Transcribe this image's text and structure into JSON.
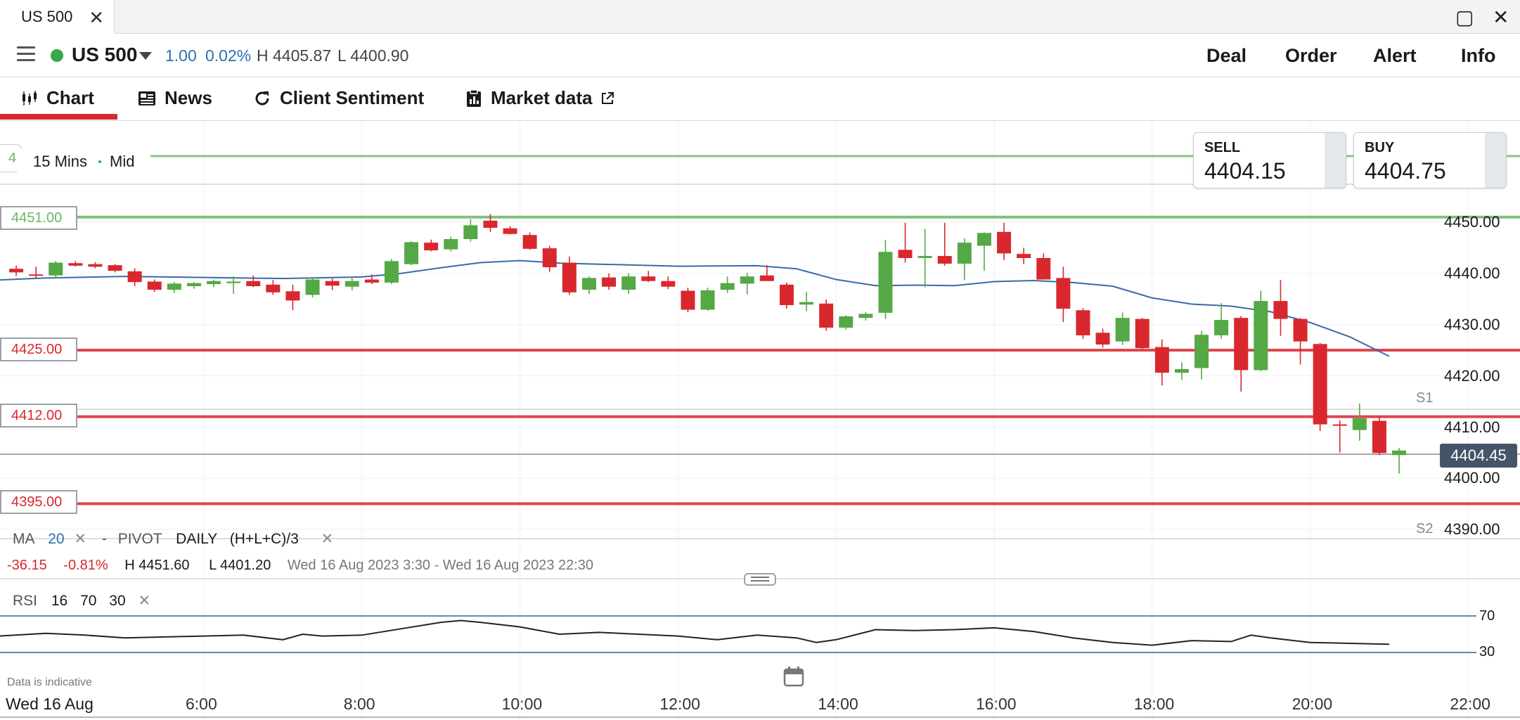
{
  "window": {
    "tab_title": "US 500",
    "close_glyph": "✕",
    "maximize_glyph": "▢",
    "exit_glyph": "✕"
  },
  "header": {
    "instrument": "US 500",
    "change": "1.00",
    "change_pct": "0.02%",
    "high": "H 4405.87",
    "low": "L 4400.90",
    "actions": [
      "Deal",
      "Order",
      "Alert",
      "Info"
    ],
    "status_color": "#39a845"
  },
  "subnav": {
    "tabs": [
      {
        "label": "Chart",
        "icon": "candlestick-chart-icon",
        "active": true
      },
      {
        "label": "News",
        "icon": "newspaper-icon"
      },
      {
        "label": "Client Sentiment",
        "icon": "refresh-icon"
      },
      {
        "label": "Market data",
        "icon": "clipboard-icon",
        "external": "external-link-icon"
      }
    ],
    "active_color": "#d8282e"
  },
  "chart": {
    "timeframe": "15 Mins",
    "price_type": "Mid",
    "top_level_label_fragment": "4",
    "sell_label": "SELL",
    "sell_price": "4404.15",
    "buy_label": "BUY",
    "buy_price": "4404.75",
    "current_price": "4404.45",
    "levels": [
      {
        "label": "4451.00",
        "value": 4451.0,
        "color": "#6cb663"
      },
      {
        "label": "4425.00",
        "value": 4425.0,
        "color": "#d8282e"
      },
      {
        "label": "4412.00",
        "value": 4412.0,
        "color": "#d8282e"
      },
      {
        "label": "4395.00",
        "value": 4395.0,
        "color": "#d8282e"
      }
    ],
    "pivots": [
      {
        "label": "S1",
        "value": 4413.2
      },
      {
        "label": "S2",
        "value": 4388.0
      }
    ],
    "indicators": {
      "ma_label": "MA",
      "ma_period": "20",
      "sep": "-",
      "pivot_label": "PIVOT",
      "pivot_period": "DAILY",
      "pivot_formula": "(H+L+C)/3",
      "remove_glyph": "✕"
    },
    "summary": {
      "change": "-36.15",
      "change_pct": "-0.81%",
      "high": "H 4451.60",
      "low": "L 4401.20",
      "range": "Wed 16 Aug 2023 3:30 - Wed 16 Aug 2023 22:30"
    },
    "rsi": {
      "label": "RSI",
      "period": "16",
      "upper": "70",
      "lower": "30",
      "remove_glyph": "✕"
    },
    "footer_note": "Data is indicative",
    "date_label": "Wed 16 Aug",
    "up_color": "#55a846",
    "down_color": "#d8282e",
    "ma_color": "#3a6aa8"
  },
  "chart_data": {
    "type": "candlestick",
    "title": "",
    "xlabel": "",
    "ylabel": "",
    "y_ticks": [
      "4450.00",
      "4440.00",
      "4430.00",
      "4420.00",
      "4410.00",
      "4400.00",
      "4390.00"
    ],
    "x_ticks": [
      "6:00",
      "8:00",
      "10:00",
      "12:00",
      "14:00",
      "16:00",
      "18:00",
      "20:00",
      "22:00"
    ],
    "ylim": [
      4386,
      4462
    ],
    "x_range_hours": [
      3.4,
      22.6
    ],
    "interval_minutes": 15,
    "candles": [
      {
        "t": "3:30",
        "o": 4440.9,
        "h": 4441.5,
        "l": 4439.5,
        "c": 4440.2
      },
      {
        "t": "3:45",
        "o": 4439.8,
        "h": 4441.3,
        "l": 4439.0,
        "c": 4439.6
      },
      {
        "t": "4:00",
        "o": 4439.6,
        "h": 4442.4,
        "l": 4439.0,
        "c": 4442.1
      },
      {
        "t": "4:15",
        "o": 4442.0,
        "h": 4442.4,
        "l": 4441.3,
        "c": 4441.5
      },
      {
        "t": "4:30",
        "o": 4441.8,
        "h": 4442.2,
        "l": 4441.0,
        "c": 4441.3
      },
      {
        "t": "4:45",
        "o": 4441.6,
        "h": 4441.8,
        "l": 4440.2,
        "c": 4440.5
      },
      {
        "t": "5:00",
        "o": 4440.4,
        "h": 4441.0,
        "l": 4437.5,
        "c": 4438.3
      },
      {
        "t": "5:15",
        "o": 4438.4,
        "h": 4438.8,
        "l": 4436.4,
        "c": 4436.8
      },
      {
        "t": "5:30",
        "o": 4436.8,
        "h": 4438.3,
        "l": 4436.2,
        "c": 4438.0
      },
      {
        "t": "5:45",
        "o": 4437.5,
        "h": 4438.3,
        "l": 4437.0,
        "c": 4438.1
      },
      {
        "t": "6:00",
        "o": 4437.9,
        "h": 4438.8,
        "l": 4437.3,
        "c": 4438.5
      },
      {
        "t": "6:15",
        "o": 4438.1,
        "h": 4439.4,
        "l": 4436.0,
        "c": 4438.4
      },
      {
        "t": "6:30",
        "o": 4438.5,
        "h": 4439.6,
        "l": 4437.3,
        "c": 4437.5
      },
      {
        "t": "6:45",
        "o": 4437.8,
        "h": 4438.7,
        "l": 4435.8,
        "c": 4436.3
      },
      {
        "t": "7:00",
        "o": 4436.5,
        "h": 4437.8,
        "l": 4432.8,
        "c": 4434.7
      },
      {
        "t": "7:15",
        "o": 4435.8,
        "h": 4439.1,
        "l": 4435.3,
        "c": 4438.8
      },
      {
        "t": "7:30",
        "o": 4438.5,
        "h": 4439.0,
        "l": 4436.7,
        "c": 4437.6
      },
      {
        "t": "7:45",
        "o": 4437.4,
        "h": 4439.4,
        "l": 4436.7,
        "c": 4438.5
      },
      {
        "t": "8:00",
        "o": 4438.8,
        "h": 4439.8,
        "l": 4437.9,
        "c": 4438.2
      },
      {
        "t": "8:15",
        "o": 4438.2,
        "h": 4442.8,
        "l": 4437.9,
        "c": 4442.4
      },
      {
        "t": "8:30",
        "o": 4441.8,
        "h": 4446.3,
        "l": 4441.6,
        "c": 4446.1
      },
      {
        "t": "8:45",
        "o": 4446.0,
        "h": 4446.6,
        "l": 4444.3,
        "c": 4444.5
      },
      {
        "t": "9:00",
        "o": 4444.7,
        "h": 4447.2,
        "l": 4444.3,
        "c": 4446.7
      },
      {
        "t": "9:15",
        "o": 4446.7,
        "h": 4450.6,
        "l": 4446.2,
        "c": 4449.4
      },
      {
        "t": "9:30",
        "o": 4450.3,
        "h": 4451.6,
        "l": 4448.1,
        "c": 4448.9
      },
      {
        "t": "9:45",
        "o": 4448.8,
        "h": 4449.2,
        "l": 4447.6,
        "c": 4447.7
      },
      {
        "t": "10:00",
        "o": 4447.5,
        "h": 4448.0,
        "l": 4444.6,
        "c": 4444.8
      },
      {
        "t": "10:15",
        "o": 4444.9,
        "h": 4445.4,
        "l": 4440.3,
        "c": 4441.2
      },
      {
        "t": "10:30",
        "o": 4442.1,
        "h": 4443.3,
        "l": 4435.8,
        "c": 4436.3
      },
      {
        "t": "10:45",
        "o": 4436.8,
        "h": 4439.4,
        "l": 4436.0,
        "c": 4439.1
      },
      {
        "t": "11:00",
        "o": 4439.2,
        "h": 4440.0,
        "l": 4436.8,
        "c": 4437.4
      },
      {
        "t": "11:15",
        "o": 4436.8,
        "h": 4440.0,
        "l": 4436.0,
        "c": 4439.4
      },
      {
        "t": "11:30",
        "o": 4439.4,
        "h": 4440.5,
        "l": 4438.3,
        "c": 4438.5
      },
      {
        "t": "11:45",
        "o": 4438.5,
        "h": 4439.4,
        "l": 4436.9,
        "c": 4437.4
      },
      {
        "t": "12:00",
        "o": 4436.6,
        "h": 4437.2,
        "l": 4432.4,
        "c": 4432.9
      },
      {
        "t": "12:15",
        "o": 4432.9,
        "h": 4437.2,
        "l": 4432.7,
        "c": 4436.7
      },
      {
        "t": "12:30",
        "o": 4436.8,
        "h": 4439.4,
        "l": 4436.2,
        "c": 4438.1
      },
      {
        "t": "12:45",
        "o": 4438.0,
        "h": 4440.1,
        "l": 4435.9,
        "c": 4439.4
      },
      {
        "t": "13:00",
        "o": 4439.6,
        "h": 4441.6,
        "l": 4438.5,
        "c": 4438.5
      },
      {
        "t": "13:15",
        "o": 4437.8,
        "h": 4438.2,
        "l": 4433.1,
        "c": 4433.8
      },
      {
        "t": "13:30",
        "o": 4433.9,
        "h": 4436.4,
        "l": 4432.6,
        "c": 4434.4
      },
      {
        "t": "13:45",
        "o": 4434.1,
        "h": 4434.9,
        "l": 4428.8,
        "c": 4429.4
      },
      {
        "t": "14:00",
        "o": 4429.4,
        "h": 4431.8,
        "l": 4429.0,
        "c": 4431.6
      },
      {
        "t": "14:15",
        "o": 4431.3,
        "h": 4432.4,
        "l": 4430.8,
        "c": 4432.1
      },
      {
        "t": "14:30",
        "o": 4432.3,
        "h": 4446.5,
        "l": 4431.1,
        "c": 4444.2
      },
      {
        "t": "14:45",
        "o": 4444.6,
        "h": 4449.9,
        "l": 4442.1,
        "c": 4443.0
      },
      {
        "t": "15:00",
        "o": 4443.0,
        "h": 4448.7,
        "l": 4437.3,
        "c": 4443.4
      },
      {
        "t": "15:15",
        "o": 4443.4,
        "h": 4449.9,
        "l": 4441.5,
        "c": 4441.9
      },
      {
        "t": "15:30",
        "o": 4441.9,
        "h": 4446.8,
        "l": 4438.7,
        "c": 4446.0
      },
      {
        "t": "15:45",
        "o": 4445.4,
        "h": 4448.0,
        "l": 4440.5,
        "c": 4447.9
      },
      {
        "t": "16:00",
        "o": 4448.1,
        "h": 4449.9,
        "l": 4442.6,
        "c": 4443.9
      },
      {
        "t": "16:15",
        "o": 4443.8,
        "h": 4445.0,
        "l": 4441.8,
        "c": 4443.0
      },
      {
        "t": "16:30",
        "o": 4443.0,
        "h": 4443.9,
        "l": 4438.8,
        "c": 4438.8
      },
      {
        "t": "16:45",
        "o": 4439.1,
        "h": 4441.3,
        "l": 4430.5,
        "c": 4433.1
      },
      {
        "t": "17:00",
        "o": 4432.8,
        "h": 4433.2,
        "l": 4427.2,
        "c": 4427.9
      },
      {
        "t": "17:15",
        "o": 4428.4,
        "h": 4429.2,
        "l": 4425.5,
        "c": 4426.1
      },
      {
        "t": "17:30",
        "o": 4426.7,
        "h": 4432.4,
        "l": 4426.0,
        "c": 4431.3
      },
      {
        "t": "17:45",
        "o": 4431.1,
        "h": 4431.3,
        "l": 4425.2,
        "c": 4425.4
      },
      {
        "t": "18:00",
        "o": 4425.6,
        "h": 4427.1,
        "l": 4418.1,
        "c": 4420.6
      },
      {
        "t": "18:15",
        "o": 4420.6,
        "h": 4422.6,
        "l": 4419.2,
        "c": 4421.3
      },
      {
        "t": "18:30",
        "o": 4421.5,
        "h": 4428.8,
        "l": 4419.3,
        "c": 4428.0
      },
      {
        "t": "18:45",
        "o": 4427.9,
        "h": 4434.2,
        "l": 4427.2,
        "c": 4430.9
      },
      {
        "t": "19:00",
        "o": 4431.3,
        "h": 4431.7,
        "l": 4416.9,
        "c": 4421.1
      },
      {
        "t": "19:15",
        "o": 4421.1,
        "h": 4436.6,
        "l": 4420.9,
        "c": 4434.6
      },
      {
        "t": "19:30",
        "o": 4434.6,
        "h": 4438.7,
        "l": 4427.8,
        "c": 4431.1
      },
      {
        "t": "19:45",
        "o": 4431.1,
        "h": 4431.3,
        "l": 4422.2,
        "c": 4426.7
      },
      {
        "t": "20:00",
        "o": 4426.2,
        "h": 4426.4,
        "l": 4409.2,
        "c": 4410.5
      },
      {
        "t": "20:15",
        "o": 4410.5,
        "h": 4411.3,
        "l": 4405.0,
        "c": 4410.4
      },
      {
        "t": "20:30",
        "o": 4409.4,
        "h": 4414.6,
        "l": 4407.3,
        "c": 4411.7
      },
      {
        "t": "20:45",
        "o": 4411.2,
        "h": 4412.2,
        "l": 4404.5,
        "c": 4404.9
      },
      {
        "t": "21:00",
        "o": 4404.5,
        "h": 4405.9,
        "l": 4400.9,
        "c": 4405.4
      }
    ],
    "series": [
      {
        "name": "MA 20",
        "x": [
          3.4,
          4.0,
          5.0,
          6.0,
          7.0,
          8.0,
          8.5,
          9.0,
          9.5,
          10.0,
          10.5,
          11.0,
          12.0,
          13.0,
          13.5,
          14.0,
          14.5,
          15.0,
          15.5,
          16.0,
          16.5,
          17.0,
          17.5,
          18.0,
          18.5,
          19.0,
          19.5,
          20.0,
          20.5,
          21.0
        ],
        "values": [
          4438.7,
          4439.1,
          4439.4,
          4439.2,
          4439.0,
          4439.3,
          4440.0,
          4441.1,
          4442.1,
          4442.5,
          4442.0,
          4441.8,
          4441.4,
          4441.5,
          4440.9,
          4438.8,
          4437.6,
          4437.7,
          4437.6,
          4438.4,
          4438.6,
          4438.2,
          4437.5,
          4435.2,
          4434.0,
          4433.6,
          4432.5,
          4430.4,
          4427.6,
          4423.8
        ]
      },
      {
        "name": "RSI 16",
        "x": [
          3.4,
          4.0,
          4.5,
          5.0,
          5.5,
          6.0,
          6.5,
          7.0,
          7.25,
          7.5,
          8.0,
          8.5,
          9.0,
          9.25,
          9.5,
          10.0,
          10.5,
          11.0,
          11.5,
          12.0,
          12.5,
          13.0,
          13.5,
          13.75,
          14.0,
          14.5,
          15.0,
          15.5,
          16.0,
          16.5,
          17.0,
          17.5,
          18.0,
          18.5,
          19.0,
          19.25,
          19.5,
          20.0,
          20.5,
          21.0
        ],
        "values": [
          48,
          51,
          49,
          46,
          47,
          48,
          49,
          44,
          50,
          48,
          49,
          56,
          63,
          65,
          63,
          58,
          50,
          52,
          50,
          48,
          44,
          49,
          46,
          41,
          44,
          55,
          54,
          55,
          57,
          53,
          46,
          41,
          38,
          43,
          42,
          49,
          46,
          41,
          40,
          39
        ]
      }
    ],
    "grid": true,
    "legend": "none"
  }
}
